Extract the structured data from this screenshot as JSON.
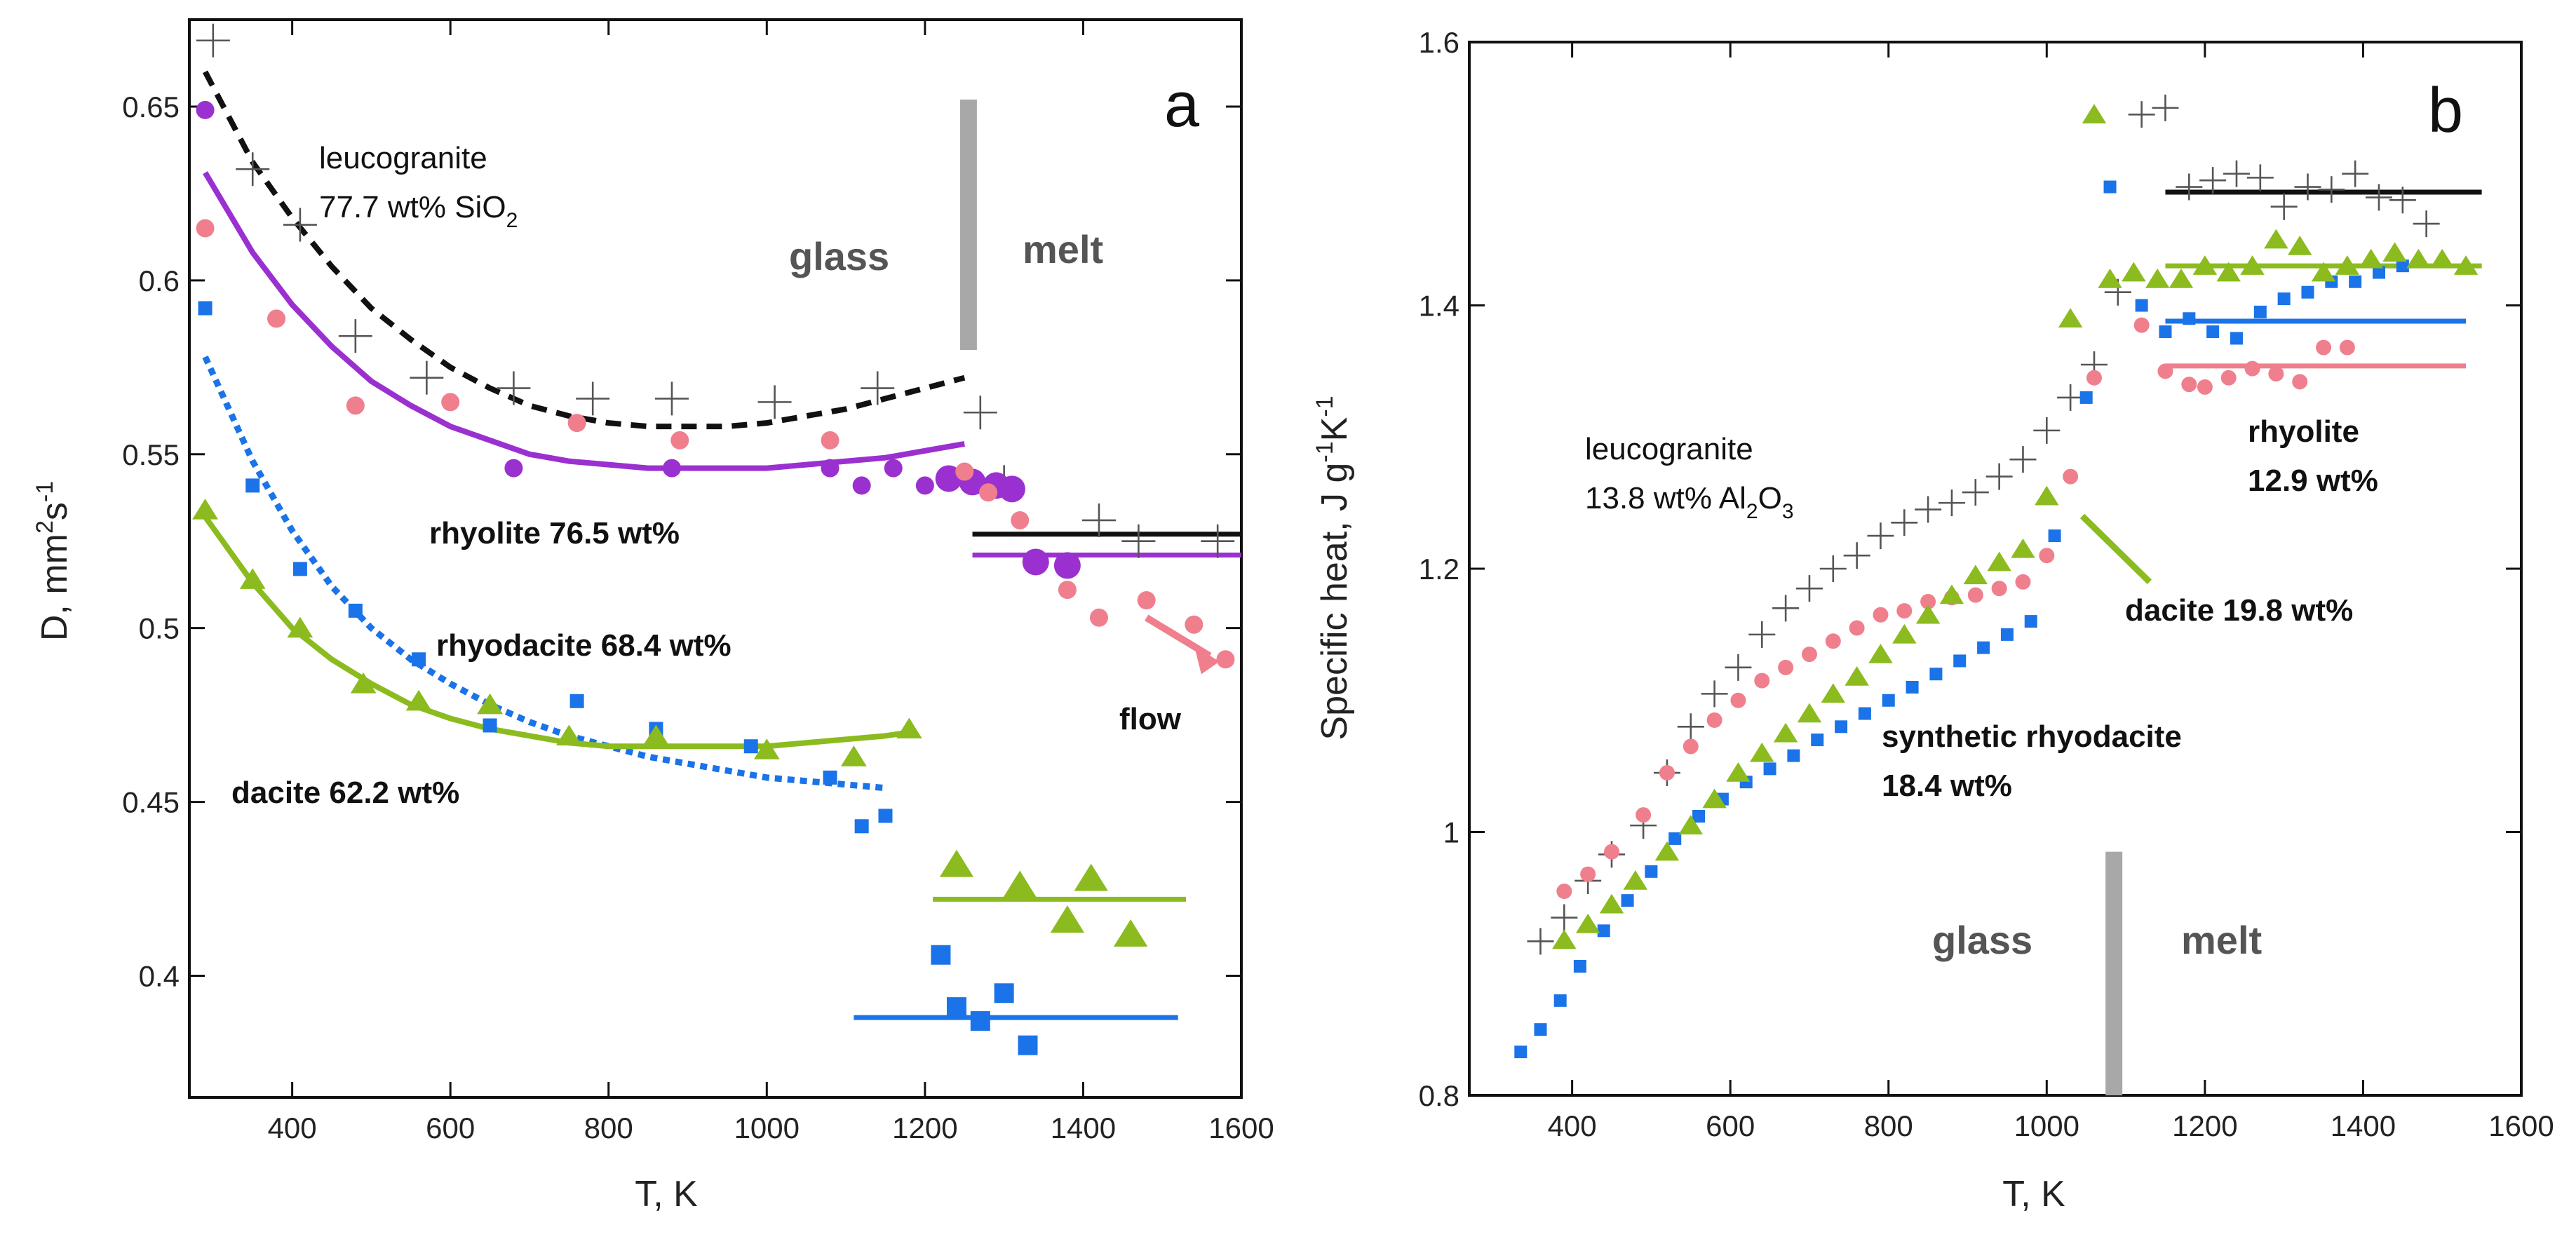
{
  "colors": {
    "leucogranite": "#111111",
    "rhyolite_a": "#9b30d0",
    "rhyolite_pink": "#f07f8e",
    "rhyodacite": "#1a73e8",
    "dacite": "#8bbb1e",
    "boundary": "#a8a8a8"
  },
  "chart_data": [
    {
      "type": "scatter",
      "panel": "a",
      "xlabel": "T, K",
      "ylabel": "D, mm²s⁻¹",
      "ylabel_parts": {
        "main": "D, mm",
        "sup1": "2",
        "mid": "s",
        "sup2": "-1"
      },
      "xlim": [
        270,
        1600
      ],
      "ylim": [
        0.365,
        0.675
      ],
      "xticks": [
        400,
        600,
        800,
        1000,
        1200,
        1400,
        1600
      ],
      "xtick_labels": [
        "400",
        "600",
        "800",
        "1000",
        "1200",
        "1400",
        "1600"
      ],
      "yticks": [
        0.4,
        0.45,
        0.5,
        0.55,
        0.6,
        0.65
      ],
      "ytick_labels": [
        "0.4",
        "0.45",
        "0.5",
        "0.55",
        "0.6",
        "0.65"
      ],
      "boundary": {
        "x": 1255,
        "y_range": [
          0.58,
          0.652
        ],
        "glass_label": "glass",
        "melt_label": "melt"
      },
      "annotations": {
        "leucogranite_line1": "leucogranite",
        "leucogranite_line2_main": "77.7 wt% SiO",
        "leucogranite_line2_sub": "2",
        "rhyolite": "rhyolite  76.5 wt%",
        "rhyodacite": "rhyodacite 68.4 wt%",
        "dacite": "dacite 62.2 wt%",
        "flow": "flow"
      },
      "series": [
        {
          "name": "leucogranite",
          "marker": "plus",
          "color": "#111111",
          "x": [
            300,
            350,
            410,
            480,
            570,
            680,
            780,
            880,
            1010,
            1140,
            1270,
            1300,
            1420,
            1470,
            1570
          ],
          "y": [
            0.669,
            0.632,
            0.616,
            0.584,
            0.572,
            0.569,
            0.566,
            0.566,
            0.565,
            0.569,
            0.562,
            0.542,
            0.531,
            0.525,
            0.525
          ],
          "glass_fit": {
            "x": [
              290,
              350,
              400,
              450,
              500,
              550,
              600,
              650,
              700,
              750,
              800,
              850,
              900,
              950,
              1000,
              1050,
              1100,
              1150,
              1200,
              1250
            ],
            "y": [
              0.66,
              0.634,
              0.618,
              0.604,
              0.592,
              0.583,
              0.575,
              0.569,
              0.564,
              0.561,
              0.559,
              0.558,
              0.558,
              0.558,
              0.559,
              0.561,
              0.563,
              0.566,
              0.569,
              0.572
            ]
          },
          "melt_line": {
            "x": [
              1260,
              1600
            ],
            "y": [
              0.527,
              0.527
            ]
          }
        },
        {
          "name": "rhyolite_purple",
          "marker": "circle",
          "color": "#9b30d0",
          "x": [
            290,
            680,
            880,
            1080,
            1120,
            1160,
            1200,
            1230,
            1260,
            1290,
            1310,
            1340,
            1380
          ],
          "y": [
            0.649,
            0.546,
            0.546,
            0.546,
            0.541,
            0.546,
            0.541,
            0.543,
            0.542,
            0.541,
            0.54,
            0.519,
            0.518
          ],
          "glass_fit": {
            "x": [
              290,
              350,
              400,
              450,
              500,
              550,
              600,
              650,
              700,
              750,
              800,
              850,
              900,
              950,
              1000,
              1050,
              1100,
              1150,
              1200,
              1250
            ],
            "y": [
              0.631,
              0.608,
              0.593,
              0.581,
              0.571,
              0.564,
              0.558,
              0.554,
              0.55,
              0.548,
              0.547,
              0.546,
              0.546,
              0.546,
              0.546,
              0.547,
              0.548,
              0.549,
              0.551,
              0.553
            ]
          },
          "melt_line": {
            "x": [
              1260,
              1600
            ],
            "y": [
              0.521,
              0.521
            ]
          }
        },
        {
          "name": "rhyolite_pink",
          "marker": "circle",
          "color": "#f07f8e",
          "x": [
            290,
            380,
            480,
            600,
            760,
            890,
            1080,
            1250,
            1280,
            1320,
            1380,
            1420,
            1480,
            1540,
            1580
          ],
          "y": [
            0.615,
            0.589,
            0.564,
            0.565,
            0.559,
            0.554,
            0.554,
            0.545,
            0.539,
            0.531,
            0.511,
            0.503,
            0.508,
            0.501,
            0.491
          ]
        },
        {
          "name": "rhyodacite",
          "marker": "square",
          "color": "#1a73e8",
          "x": [
            290,
            350,
            410,
            480,
            560,
            650,
            760,
            860,
            980,
            1080,
            1120,
            1150,
            1220,
            1240,
            1270,
            1300,
            1330
          ],
          "y": [
            0.592,
            0.541,
            0.517,
            0.505,
            0.491,
            0.472,
            0.479,
            0.471,
            0.466,
            0.457,
            0.443,
            0.446,
            0.406,
            0.391,
            0.387,
            0.395,
            0.38
          ],
          "glass_fit": {
            "x": [
              290,
              350,
              400,
              450,
              500,
              550,
              600,
              650,
              700,
              750,
              800,
              850,
              900,
              950,
              1000,
              1050,
              1100,
              1150
            ],
            "y": [
              0.578,
              0.548,
              0.528,
              0.512,
              0.5,
              0.491,
              0.484,
              0.478,
              0.473,
              0.469,
              0.466,
              0.463,
              0.461,
              0.459,
              0.457,
              0.456,
              0.455,
              0.454
            ]
          },
          "melt_line": {
            "x": [
              1110,
              1520
            ],
            "y": [
              0.388,
              0.388
            ]
          }
        },
        {
          "name": "dacite",
          "marker": "triangle",
          "color": "#8bbb1e",
          "x": [
            290,
            350,
            410,
            490,
            560,
            650,
            750,
            860,
            1000,
            1110,
            1180,
            1240,
            1320,
            1380,
            1410,
            1460
          ],
          "y": [
            0.534,
            0.514,
            0.5,
            0.484,
            0.479,
            0.478,
            0.469,
            0.469,
            0.465,
            0.463,
            0.471,
            0.432,
            0.426,
            0.416,
            0.428,
            0.412
          ],
          "glass_fit": {
            "x": [
              290,
              350,
              400,
              450,
              500,
              550,
              600,
              650,
              700,
              750,
              800,
              850,
              900,
              950,
              1000,
              1050,
              1100,
              1150,
              1180
            ],
            "y": [
              0.532,
              0.513,
              0.5,
              0.491,
              0.484,
              0.478,
              0.474,
              0.471,
              0.469,
              0.467,
              0.466,
              0.466,
              0.466,
              0.466,
              0.466,
              0.467,
              0.468,
              0.469,
              0.47
            ]
          },
          "melt_line": {
            "x": [
              1210,
              1530
            ],
            "y": [
              0.422,
              0.422
            ]
          }
        }
      ]
    },
    {
      "type": "scatter",
      "panel": "b",
      "xlabel": "T, K",
      "ylabel": "Specific heat, J g⁻¹K⁻¹",
      "ylabel_parts": {
        "main": "Specific heat, J g",
        "sup1": "-1",
        "mid": "K",
        "sup2": "-1"
      },
      "xlim": [
        270,
        1600
      ],
      "ylim": [
        0.8,
        1.6
      ],
      "xticks": [
        400,
        600,
        800,
        1000,
        1200,
        1400,
        1600
      ],
      "xtick_labels": [
        "400",
        "600",
        "800",
        "1000",
        "1200",
        "1400",
        "1600"
      ],
      "yticks": [
        0.8,
        1.0,
        1.2,
        1.4,
        1.6
      ],
      "ytick_labels": [
        "0.8",
        "1",
        "1.2",
        "1.4",
        "1.6"
      ],
      "boundary": {
        "x": 1085,
        "y_range": [
          0.8,
          0.985
        ],
        "glass_label": "glass",
        "melt_label": "melt"
      },
      "annotations": {
        "leucogranite_line1": "leucogranite",
        "leucogranite_line2_main": "13.8 wt% Al",
        "leucogranite_line2_sub": "2",
        "leucogranite_line2_mid": "O",
        "leucogranite_line2_sub2": "3",
        "rhyolite_line1": "rhyolite",
        "rhyolite_line2": "12.9 wt%",
        "dacite": "dacite 19.8 wt%",
        "synthetic_line1": "synthetic rhyodacite",
        "synthetic_line2": "18.4 wt%"
      },
      "series": [
        {
          "name": "leucogranite",
          "marker": "plus",
          "color": "#111111",
          "x": [
            360,
            390,
            420,
            450,
            490,
            520,
            550,
            580,
            610,
            640,
            670,
            700,
            730,
            760,
            790,
            820,
            850,
            880,
            910,
            940,
            970,
            1000,
            1030,
            1060,
            1090,
            1120,
            1150,
            1180,
            1210,
            1240,
            1270,
            1300,
            1330,
            1360,
            1390,
            1420,
            1450,
            1480
          ],
          "y": [
            0.917,
            0.935,
            0.963,
            0.983,
            1.005,
            1.045,
            1.08,
            1.105,
            1.125,
            1.15,
            1.17,
            1.185,
            1.2,
            1.21,
            1.225,
            1.235,
            1.245,
            1.25,
            1.258,
            1.27,
            1.283,
            1.305,
            1.33,
            1.355,
            1.41,
            1.545,
            1.55,
            1.49,
            1.495,
            1.5,
            1.497,
            1.475,
            1.49,
            1.488,
            1.5,
            1.482,
            1.48,
            1.462
          ]
        },
        {
          "name": "rhyolite",
          "marker": "circle",
          "color": "#f07f8e",
          "x": [
            390,
            420,
            450,
            490,
            520,
            550,
            580,
            610,
            640,
            670,
            700,
            730,
            760,
            790,
            820,
            850,
            880,
            910,
            940,
            970,
            1000,
            1030,
            1060,
            1120,
            1150,
            1180,
            1200,
            1230,
            1260,
            1290,
            1320,
            1350,
            1380
          ],
          "y": [
            0.955,
            0.968,
            0.985,
            1.013,
            1.045,
            1.065,
            1.085,
            1.1,
            1.115,
            1.125,
            1.135,
            1.145,
            1.155,
            1.165,
            1.168,
            1.175,
            1.178,
            1.18,
            1.185,
            1.19,
            1.21,
            1.27,
            1.345,
            1.385,
            1.35,
            1.34,
            1.338,
            1.345,
            1.352,
            1.348,
            1.342,
            1.368,
            1.368
          ]
        },
        {
          "name": "synthetic_rhyodacite",
          "marker": "square",
          "color": "#1a73e8",
          "x": [
            335,
            360,
            385,
            410,
            440,
            470,
            500,
            530,
            560,
            590,
            620,
            650,
            680,
            710,
            740,
            770,
            800,
            830,
            860,
            890,
            920,
            950,
            980,
            1010,
            1050,
            1080,
            1120,
            1150,
            1180,
            1210,
            1240,
            1270,
            1300,
            1330,
            1360,
            1390,
            1420,
            1450
          ],
          "y": [
            0.833,
            0.85,
            0.872,
            0.898,
            0.925,
            0.948,
            0.97,
            0.995,
            1.012,
            1.025,
            1.038,
            1.048,
            1.058,
            1.07,
            1.08,
            1.09,
            1.1,
            1.11,
            1.12,
            1.13,
            1.14,
            1.15,
            1.16,
            1.225,
            1.33,
            1.49,
            1.4,
            1.38,
            1.39,
            1.38,
            1.375,
            1.395,
            1.405,
            1.41,
            1.418,
            1.418,
            1.425,
            1.43
          ],
          "melt_line": {
            "x": [
              1150,
              1530
            ],
            "y": [
              1.388,
              1.388
            ]
          }
        },
        {
          "name": "dacite",
          "marker": "triangle",
          "color": "#8bbb1e",
          "x": [
            390,
            420,
            450,
            480,
            520,
            550,
            580,
            610,
            640,
            670,
            700,
            730,
            760,
            790,
            820,
            850,
            880,
            910,
            940,
            970,
            1000,
            1030,
            1060,
            1080,
            1110,
            1140,
            1170,
            1200,
            1230,
            1260,
            1290,
            1320,
            1350,
            1380,
            1410,
            1440,
            1470,
            1500,
            1530
          ],
          "y": [
            0.918,
            0.93,
            0.945,
            0.963,
            0.985,
            1.005,
            1.025,
            1.045,
            1.06,
            1.075,
            1.09,
            1.105,
            1.118,
            1.135,
            1.15,
            1.165,
            1.18,
            1.195,
            1.205,
            1.215,
            1.255,
            1.39,
            1.545,
            1.42,
            1.425,
            1.42,
            1.42,
            1.43,
            1.425,
            1.43,
            1.45,
            1.445,
            1.425,
            1.43,
            1.435,
            1.44,
            1.435,
            1.435,
            1.43
          ]
        },
        {
          "name": "melt_lines_other",
          "marker": "none",
          "leucogranite_line": {
            "x": [
              1150,
              1550
            ],
            "y": [
              1.486,
              1.486
            ]
          },
          "dacite_line": {
            "x": [
              1150,
              1550
            ],
            "y": [
              1.43,
              1.43
            ]
          },
          "rhyolite_line": {
            "x": [
              1150,
              1530
            ],
            "y": [
              1.354,
              1.354
            ]
          },
          "dacite_pointer": {
            "x": [
              1045,
              1130
            ],
            "y": [
              1.24,
              1.19
            ]
          }
        }
      ]
    }
  ]
}
